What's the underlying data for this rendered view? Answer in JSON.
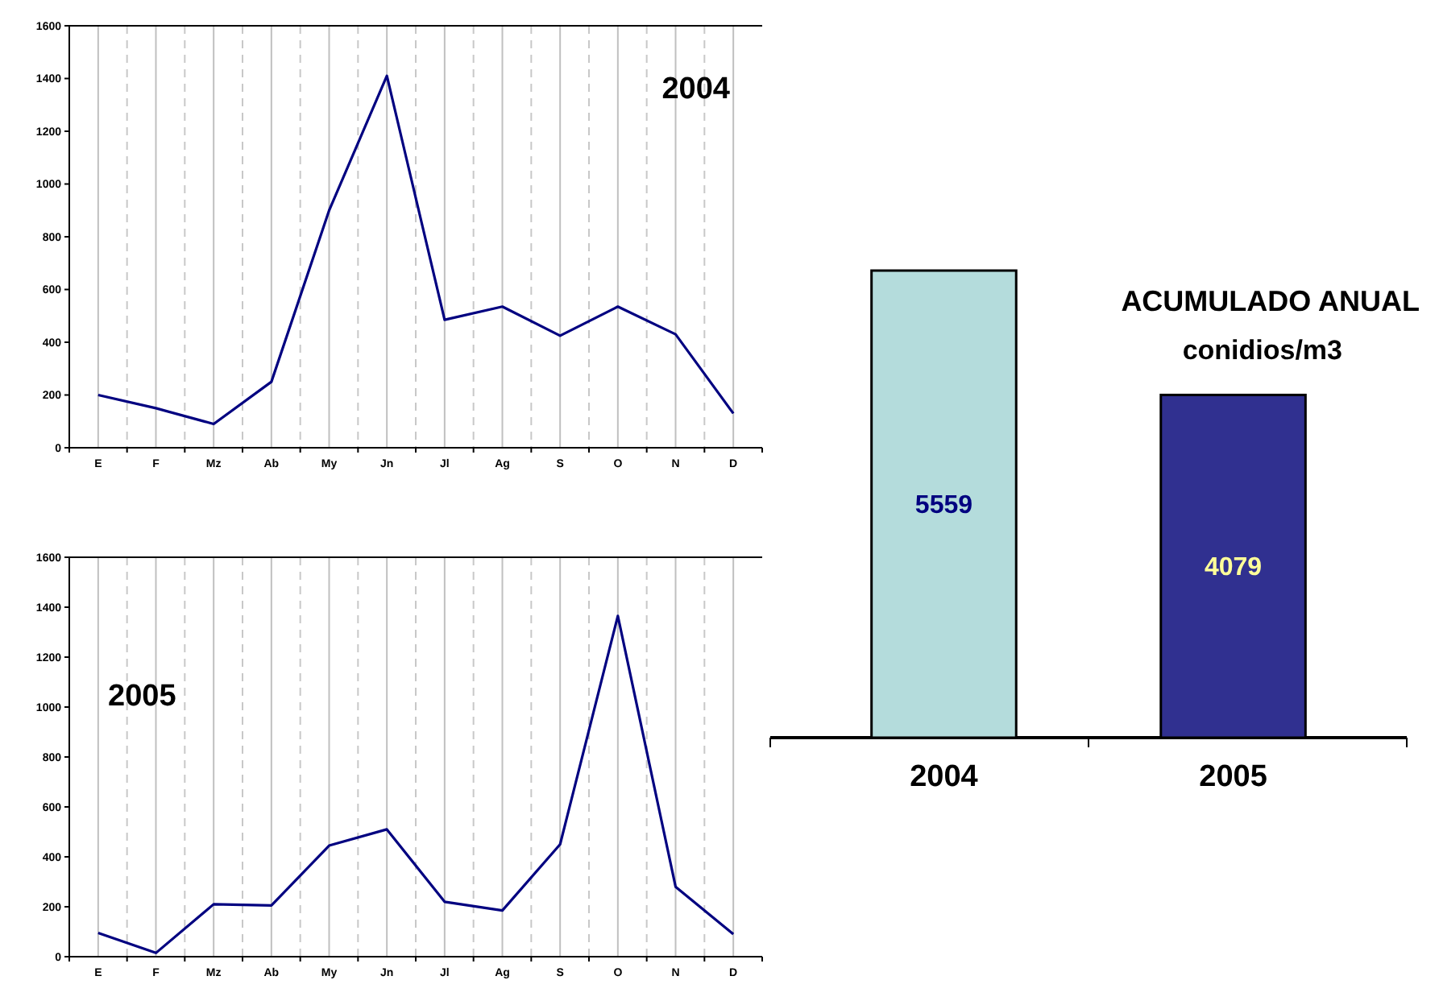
{
  "chart_data": [
    {
      "type": "line",
      "title": "2004",
      "categories": [
        "E",
        "F",
        "Mz",
        "Ab",
        "My",
        "Jn",
        "Jl",
        "Ag",
        "S",
        "O",
        "N",
        "D"
      ],
      "series": [
        {
          "color": "#000080",
          "values": [
            200,
            150,
            90,
            250,
            900,
            1410,
            485,
            535,
            425,
            535,
            430,
            130
          ]
        }
      ],
      "ylim": [
        0,
        1600
      ],
      "yticks": [
        0,
        200,
        400,
        600,
        800,
        1000,
        1200,
        1400,
        1600
      ],
      "grid": "x",
      "marker": "none",
      "line_style": "solid"
    },
    {
      "type": "line",
      "title": "2005",
      "categories": [
        "E",
        "F",
        "Mz",
        "Ab",
        "My",
        "Jn",
        "Jl",
        "Ag",
        "S",
        "O",
        "N",
        "D"
      ],
      "series": [
        {
          "color": "#000080",
          "values": [
            95,
            15,
            210,
            205,
            445,
            510,
            220,
            185,
            450,
            1365,
            280,
            90
          ]
        }
      ],
      "ylim": [
        0,
        1600
      ],
      "yticks": [
        0,
        200,
        400,
        600,
        800,
        1000,
        1200,
        1400,
        1600
      ],
      "grid": "x",
      "marker": "none",
      "line_style": "solid"
    },
    {
      "type": "bar",
      "title": "ACUMULADO ANUAL",
      "subtitle": "conidios/m3",
      "categories": [
        "2004",
        "2005"
      ],
      "values": [
        5559,
        4079
      ],
      "colors": [
        "#b4dcdc",
        "#303090"
      ],
      "data_labels": true
    }
  ]
}
